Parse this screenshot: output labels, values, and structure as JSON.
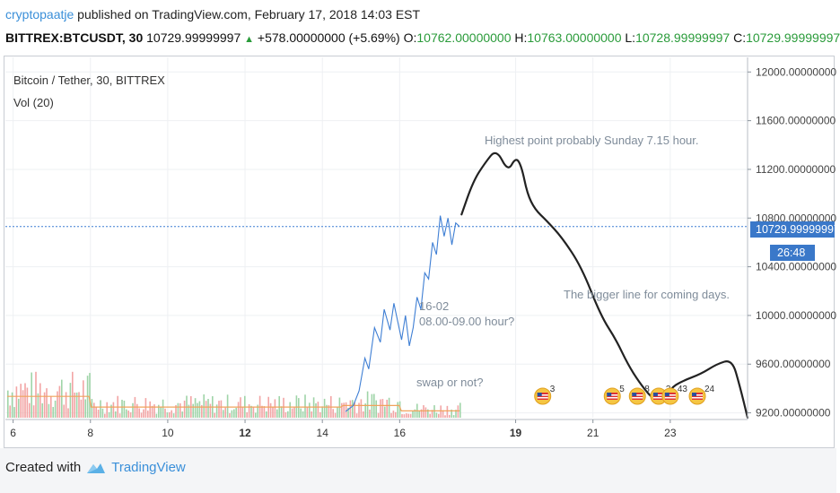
{
  "header": {
    "author": "cryptopaatje",
    "published": "published on TradingView.com, February 17, 2018 14:03 EST",
    "symbol": "BITTREX:BTCUSDT, 30",
    "last": "10729.99999997",
    "arrow": "▲",
    "change": "+578.00000000 (+5.69%)",
    "o_label": "O:",
    "o_val": "10762.00000000",
    "h_label": "H:",
    "h_val": "10763.00000000",
    "l_label": "L:",
    "l_val": "10728.99999997",
    "c_label": "C:",
    "c_val": "10729.99999997"
  },
  "legend": {
    "title": "Bitcoin / Tether, 30, BITTREX",
    "volume": "Vol (20)"
  },
  "annotations": {
    "highest": "Highest point probably Sunday 7.15 hour.",
    "bigger": "The bigger line for coming days.",
    "date_line1": "16-02",
    "date_line2": "08.00-09.00 hour?",
    "swap": "swap or not?"
  },
  "price_tag": {
    "value": "10729.99999997",
    "countdown": "26:48"
  },
  "footer": {
    "created_with": "Created with",
    "brand": "TradingView"
  },
  "colors": {
    "price_line": "#3f7fd4",
    "drawing": "#222222",
    "vol_up": "#9fd4a8",
    "vol_down": "#f2a5a5",
    "vol_ma": "#f0a35c",
    "price_tag_bg": "#3a78c9",
    "dotted_line": "#3f7fd4",
    "annotation_text": "#7f8c9a"
  },
  "event_icons": [
    {
      "count": "3",
      "day": 19.7
    },
    {
      "count": "5",
      "day": 21.5
    },
    {
      "count": "8",
      "day": 22.15
    },
    {
      "count": "3",
      "day": 22.7
    },
    {
      "count": "43",
      "day": 23.0
    },
    {
      "count": "24",
      "day": 23.7
    }
  ],
  "chart_data": {
    "type": "line",
    "title": "Bitcoin / Tether, 30, BITTREX",
    "x_ticks": [
      "6",
      "8",
      "10",
      "12",
      "14",
      "16",
      "19",
      "21",
      "23"
    ],
    "x_tick_days": [
      6,
      8,
      10,
      12,
      14,
      16,
      19,
      21,
      23
    ],
    "bold_ticks": [
      "12",
      "19"
    ],
    "xlim": [
      5.8,
      25.0
    ],
    "y_ticks": [
      "12000.00000000",
      "11600.00000000",
      "11200.00000000",
      "10800.00000000",
      "10400.00000000",
      "10000.00000000",
      "9600.00000000",
      "9200.00000000"
    ],
    "y_tick_values": [
      12000,
      11600,
      11200,
      10800,
      10400,
      10000,
      9600,
      9200
    ],
    "ylim": [
      9160,
      12120
    ],
    "grid": true,
    "price_series": {
      "name": "BTCUSDT",
      "x": [
        14.6,
        14.8,
        14.95,
        15.1,
        15.2,
        15.35,
        15.5,
        15.6,
        15.75,
        15.85,
        15.95,
        16.05,
        16.15,
        16.25,
        16.35,
        16.45,
        16.55,
        16.65,
        16.75,
        16.85,
        16.95,
        17.05,
        17.15,
        17.25,
        17.35,
        17.45,
        17.55
      ],
      "y": [
        9210,
        9260,
        9380,
        9650,
        9560,
        9900,
        9780,
        10050,
        9880,
        10100,
        9950,
        9800,
        10000,
        9750,
        9900,
        10150,
        10050,
        10350,
        10300,
        10600,
        10500,
        10820,
        10650,
        10800,
        10580,
        10760,
        10730
      ]
    },
    "projection_series": {
      "name": "drawing",
      "x": [
        17.6,
        17.9,
        18.2,
        18.5,
        18.8,
        19.0,
        19.15,
        19.3,
        19.5,
        19.8,
        20.2,
        20.7,
        21.2,
        21.6,
        21.9,
        22.2,
        22.5,
        22.8,
        23.0,
        23.3,
        23.8,
        24.2,
        24.6,
        24.8,
        25.0
      ],
      "y": [
        10830,
        11100,
        11250,
        11370,
        11180,
        11300,
        11230,
        11000,
        10870,
        10780,
        10640,
        10400,
        10000,
        9800,
        9600,
        9450,
        9330,
        9260,
        9400,
        9460,
        9520,
        9600,
        9640,
        9420,
        9160
      ]
    },
    "current_price": 10729.99999997
  }
}
